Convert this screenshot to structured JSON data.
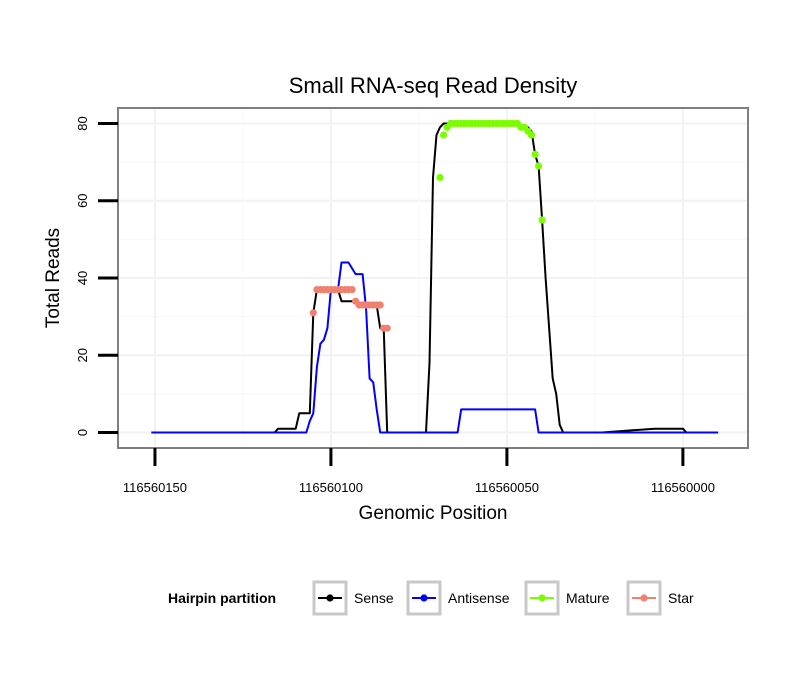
{
  "chart_data": {
    "type": "line",
    "title": "Small RNA-seq Read Density",
    "xlabel": "Genomic Position",
    "ylabel": "Total Reads",
    "xlim": [
      116560160.5,
      116559981.5
    ],
    "ylim": [
      -4,
      84
    ],
    "x_reversed": true,
    "x_ticks": [
      116560150,
      116560100,
      116560050,
      116560000
    ],
    "x_tick_labels": [
      "116560150",
      "116560100",
      "116560050",
      "116560000"
    ],
    "y_ticks": [
      0,
      20,
      40,
      60,
      80
    ],
    "y_tick_labels": [
      "0",
      "20",
      "40",
      "60",
      "80"
    ],
    "grid": true,
    "legend": {
      "title": "Hairpin partition",
      "position": "bottom",
      "entries": [
        "Sense",
        "Antisense",
        "Mature",
        "Star"
      ]
    },
    "series": [
      {
        "name": "Sense",
        "color": "#000000",
        "style": "line",
        "x": [
          116560151,
          116560116,
          116560115,
          116560110,
          116560109,
          116560106,
          116560105,
          116560104,
          116560103,
          116560098,
          116560097,
          116560093,
          116560092,
          116560087,
          116560086,
          116560085,
          116560084,
          116560073,
          116560072,
          116560071,
          116560070,
          116560069,
          116560068,
          116560060,
          116560059,
          116560058,
          116560057,
          116560056,
          116560055,
          116560054,
          116560053,
          116560052,
          116560051,
          116560050,
          116560049,
          116560044,
          116560043,
          116560042,
          116560041,
          116560040,
          116560039,
          116560037,
          116560036,
          116560035,
          116560034,
          116560033,
          116560032,
          116560031,
          116560024,
          116560023,
          116560008,
          116560007,
          116560000,
          116559999,
          116559990
        ],
        "y": [
          0,
          0,
          1,
          1,
          5,
          5,
          31,
          37,
          37,
          37,
          34,
          34,
          33,
          33,
          27,
          27,
          0,
          0,
          18,
          66,
          77,
          79,
          80,
          80,
          80,
          80,
          80,
          80,
          80,
          80,
          80,
          80,
          80,
          80,
          80,
          79,
          78,
          72,
          69,
          55,
          40,
          14,
          10,
          2,
          0,
          0,
          0,
          0,
          0,
          0,
          1,
          1,
          1,
          0,
          0
        ]
      },
      {
        "name": "Antisense",
        "color": "#0000ff",
        "style": "line",
        "x": [
          116560151,
          116560107,
          116560106,
          116560105,
          116560104,
          116560103,
          116560102,
          116560101,
          116560100,
          116560099,
          116560098,
          116560097,
          116560096,
          116560095,
          116560093,
          116560092,
          116560091,
          116560090,
          116560089,
          116560088,
          116560087,
          116560086,
          116560064,
          116560063,
          116560053,
          116560043,
          116560042,
          116560041,
          116559990
        ],
        "y": [
          0,
          0,
          3,
          5,
          17,
          23,
          24,
          27,
          37,
          37,
          37,
          44,
          44,
          44,
          41,
          41,
          41,
          32,
          14,
          13,
          6,
          0,
          0,
          6,
          6,
          6,
          6,
          0,
          0
        ]
      },
      {
        "name": "Mature",
        "color": "#7cfc00",
        "style": "points",
        "x": [
          116560069,
          116560068,
          116560067,
          116560066,
          116560065,
          116560064,
          116560063,
          116560062,
          116560061,
          116560060,
          116560059,
          116560058,
          116560057,
          116560056,
          116560055,
          116560054,
          116560053,
          116560052,
          116560051,
          116560050,
          116560049,
          116560048,
          116560047,
          116560046,
          116560045,
          116560044,
          116560043,
          116560042,
          116560041,
          116560040
        ],
        "y": [
          66,
          77,
          79,
          80,
          80,
          80,
          80,
          80,
          80,
          80,
          80,
          80,
          80,
          80,
          80,
          80,
          80,
          80,
          80,
          80,
          80,
          80,
          80,
          79,
          79,
          78,
          77,
          72,
          69,
          55
        ]
      },
      {
        "name": "Star",
        "color": "#f08070",
        "style": "points",
        "x": [
          116560105,
          116560104,
          116560103,
          116560102,
          116560101,
          116560100,
          116560099,
          116560098,
          116560097,
          116560096,
          116560095,
          116560094,
          116560093,
          116560092,
          116560091,
          116560090,
          116560089,
          116560088,
          116560087,
          116560086,
          116560085,
          116560084
        ],
        "y": [
          31,
          37,
          37,
          37,
          37,
          37,
          37,
          37,
          37,
          37,
          37,
          37,
          34,
          33,
          33,
          33,
          33,
          33,
          33,
          33,
          27,
          27
        ]
      }
    ]
  }
}
